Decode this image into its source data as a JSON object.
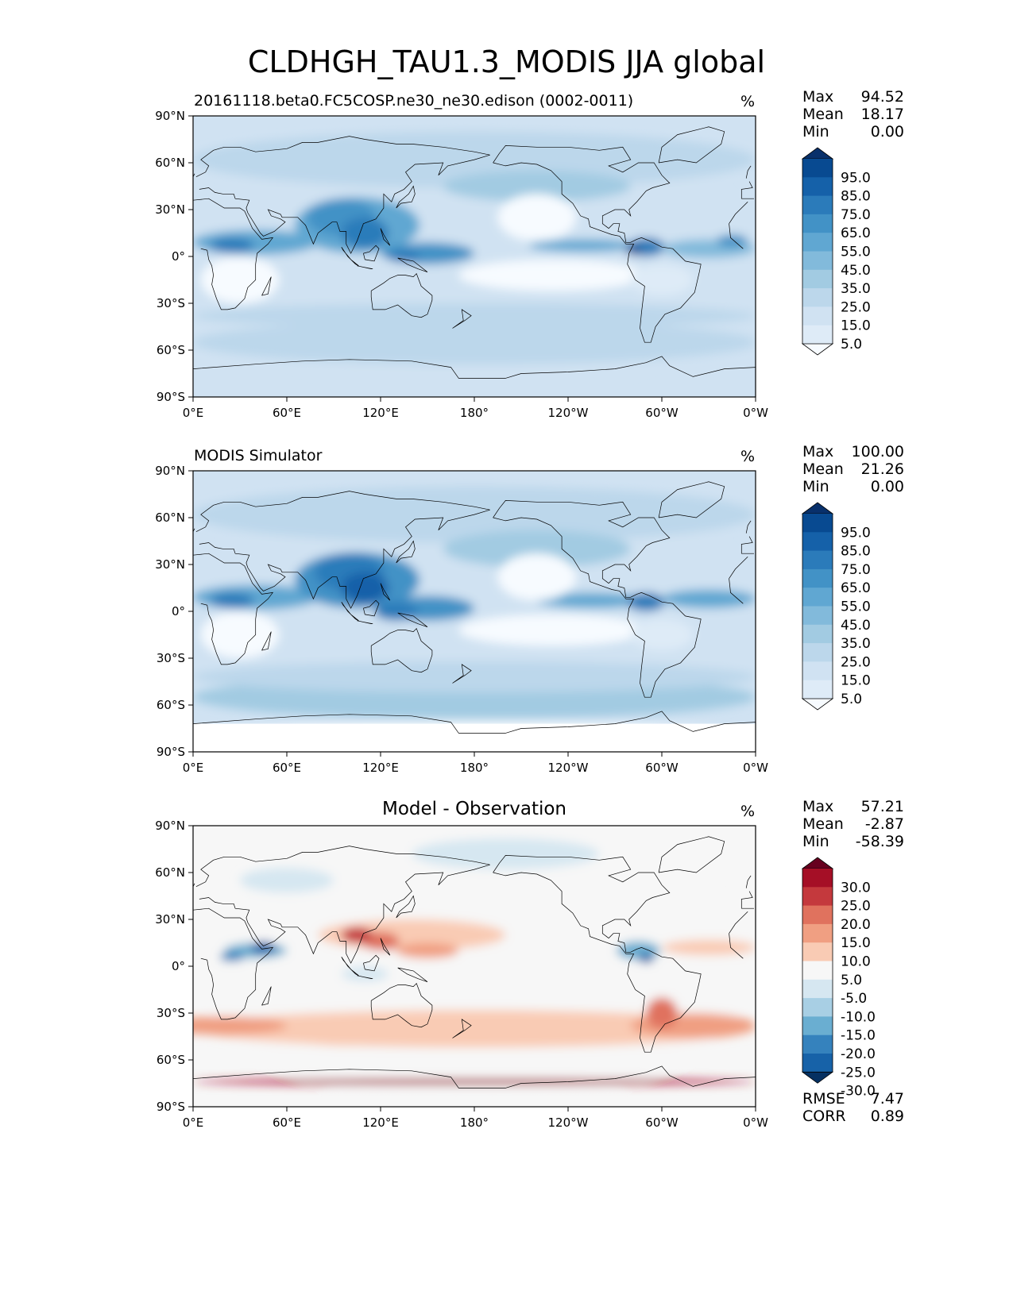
{
  "figure": {
    "title": "CLDHGH_TAU1.3_MODIS JJA global"
  },
  "chart_data": [
    {
      "type": "heatmap",
      "title_left": "20161118.beta0.FC5COSP.ne30_ne30.edison (0002-0011)",
      "units": "%",
      "xticks": [
        "0°E",
        "60°E",
        "120°E",
        "180°",
        "120°W",
        "60°W",
        "0°W"
      ],
      "yticks": [
        "90°N",
        "60°N",
        "30°N",
        "0°",
        "30°S",
        "60°S",
        "90°S"
      ],
      "xlim": [
        0,
        360
      ],
      "ylim": [
        -90,
        90
      ],
      "stats": {
        "max_label": "Max",
        "max": "94.52",
        "mean_label": "Mean",
        "mean": "18.17",
        "min_label": "Min",
        "min": "0.00"
      },
      "colorbar": {
        "labels": [
          "95.0",
          "85.0",
          "75.0",
          "65.0",
          "55.0",
          "45.0",
          "35.0",
          "25.0",
          "15.0",
          "5.0"
        ],
        "colors": [
          "#f7fbff",
          "#deebf7",
          "#d0e2f2",
          "#bcd7eb",
          "#a2cbe2",
          "#82badb",
          "#60a7d2",
          "#4292c6",
          "#2b7bba",
          "#1561a9",
          "#084a91",
          "#08306b"
        ]
      }
    },
    {
      "type": "heatmap",
      "title_left": "MODIS Simulator",
      "units": "%",
      "xticks": [
        "0°E",
        "60°E",
        "120°E",
        "180°",
        "120°W",
        "60°W",
        "0°W"
      ],
      "yticks": [
        "90°N",
        "60°N",
        "30°N",
        "0°",
        "30°S",
        "60°S",
        "90°S"
      ],
      "xlim": [
        0,
        360
      ],
      "ylim": [
        -90,
        90
      ],
      "stats": {
        "max_label": "Max",
        "max": "100.00",
        "mean_label": "Mean",
        "mean": "21.26",
        "min_label": "Min",
        "min": "0.00"
      },
      "colorbar": {
        "labels": [
          "95.0",
          "85.0",
          "75.0",
          "65.0",
          "55.0",
          "45.0",
          "35.0",
          "25.0",
          "15.0",
          "5.0"
        ],
        "colors": [
          "#f7fbff",
          "#deebf7",
          "#d0e2f2",
          "#bcd7eb",
          "#a2cbe2",
          "#82badb",
          "#60a7d2",
          "#4292c6",
          "#2b7bba",
          "#1561a9",
          "#084a91",
          "#08306b"
        ]
      }
    },
    {
      "type": "heatmap",
      "title_center": "Model - Observation",
      "units": "%",
      "xticks": [
        "0°E",
        "60°E",
        "120°E",
        "180°",
        "120°W",
        "60°W",
        "0°W"
      ],
      "yticks": [
        "90°N",
        "60°N",
        "30°N",
        "0°",
        "30°S",
        "60°S",
        "90°S"
      ],
      "xlim": [
        0,
        360
      ],
      "ylim": [
        -90,
        90
      ],
      "stats": {
        "max_label": "Max",
        "max": "57.21",
        "mean_label": "Mean",
        "mean": "-2.87",
        "min_label": "Min",
        "min": "-58.39"
      },
      "metrics": {
        "rmse_label": "RMSE",
        "rmse": "7.47",
        "corr_label": "CORR",
        "corr": "0.89"
      },
      "colorbar": {
        "labels": [
          "30.0",
          "25.0",
          "20.0",
          "15.0",
          "10.0",
          "5.0",
          "-5.0",
          "-10.0",
          "-15.0",
          "-20.0",
          "-25.0",
          "-30.0"
        ],
        "colors": [
          "#67001f",
          "#a50f26",
          "#c4393d",
          "#e0725e",
          "#f09f82",
          "#f9cbb4",
          "#f7f7f7",
          "#d6e7f1",
          "#a8cfe4",
          "#6aaed1",
          "#3582bd",
          "#1762a8",
          "#053061"
        ]
      }
    }
  ]
}
